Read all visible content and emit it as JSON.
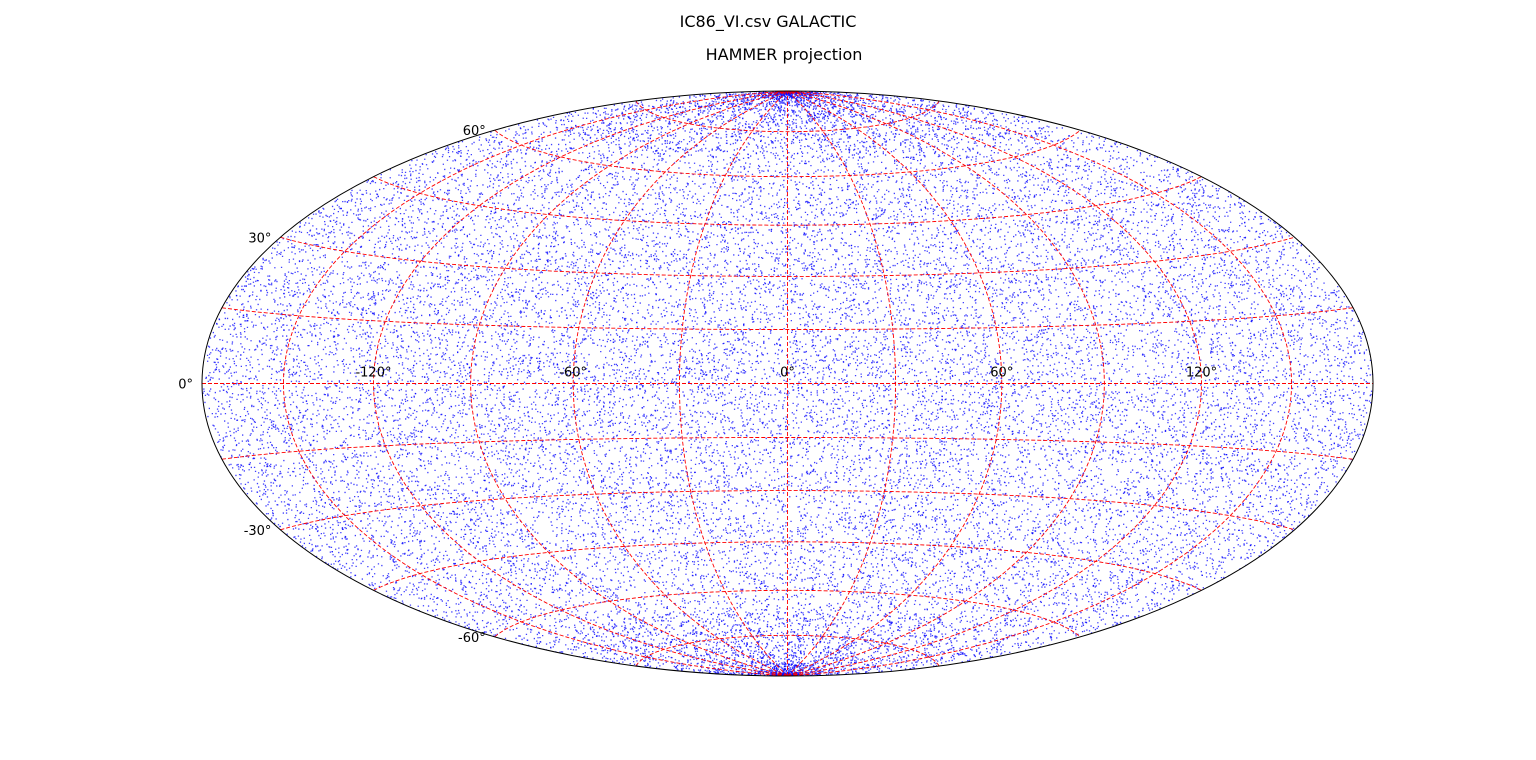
{
  "chart_data": {
    "type": "scatter",
    "suptitle": "IC86_VI.csv GALACTIC",
    "title": "HAMMER projection",
    "projection": "hammer",
    "xlim": [
      -180,
      180
    ],
    "ylim": [
      -90,
      90
    ],
    "grid": true,
    "grid_color": "#ff0000",
    "grid_style": "dashed",
    "point_color": "#0000ff",
    "xticks": [
      {
        "value": -120,
        "label": "-120°"
      },
      {
        "value": -60,
        "label": "-60°"
      },
      {
        "value": 0,
        "label": "0°"
      },
      {
        "value": 60,
        "label": "60°"
      },
      {
        "value": 120,
        "label": "120°"
      }
    ],
    "yticks": [
      {
        "value": 60,
        "label": "60°"
      },
      {
        "value": 30,
        "label": "30°"
      },
      {
        "value": 0,
        "label": "0°"
      },
      {
        "value": -30,
        "label": "-30°"
      },
      {
        "value": -60,
        "label": "-60°"
      }
    ],
    "series": [
      {
        "description": "dense random point cloud covering the full sky, denser near the poles",
        "n_points": 28000,
        "polar_excess": true
      }
    ]
  }
}
